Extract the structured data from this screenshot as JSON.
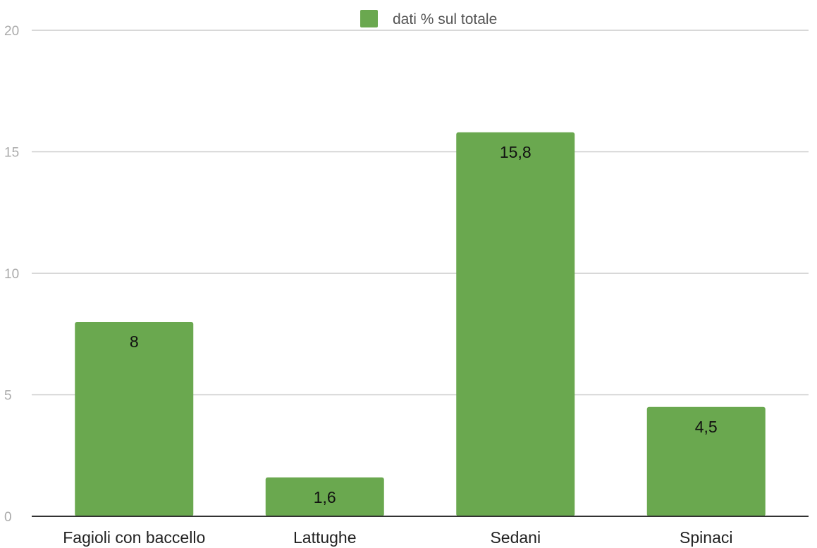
{
  "chart_data": {
    "type": "bar",
    "categories": [
      "Fagioli con baccello",
      "Lattughe",
      "Sedani",
      "Spinaci"
    ],
    "series": [
      {
        "name": "dati % sul totale",
        "values": [
          8,
          1.6,
          15.8,
          4.5
        ],
        "value_labels": [
          "8",
          "1,6",
          "15,8",
          "4,5"
        ],
        "color": "#6aa84f"
      }
    ],
    "ylim": [
      0,
      20
    ],
    "yticks": [
      0,
      5,
      10,
      15,
      20
    ],
    "grid": true,
    "legend_position": "top",
    "colors": {
      "gridline": "#cccccc",
      "baseline": "#333333"
    }
  }
}
